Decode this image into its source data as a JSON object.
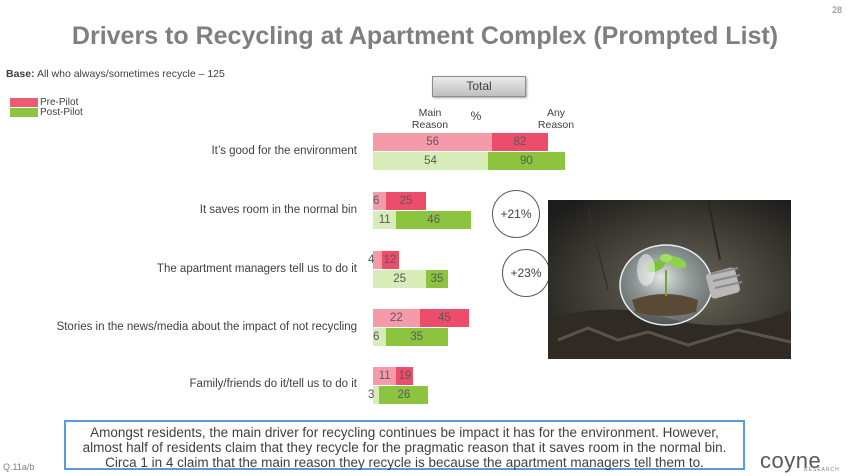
{
  "page_number": "28",
  "title": "Drivers to Recycling at Apartment Complex (Prompted List)",
  "base": {
    "label": "Base:",
    "text": " All who always/sometimes recycle – 125"
  },
  "toggle": {
    "label": "Total"
  },
  "colors": {
    "pre_main": "#f49aa8",
    "pre_any": "#ec4d6a",
    "post_main": "#d7ecb7",
    "post_any": "#8cc43f",
    "legend_pre": "#ee5a74",
    "legend_post": "#8cc43f"
  },
  "chart_data": {
    "type": "bar",
    "orientation": "horizontal",
    "stacked": true,
    "column_headers": {
      "main": "Main\nReason",
      "percent": "%",
      "any": "Any\nReason"
    },
    "legend": [
      "Pre-Pilot",
      "Post-Pilot"
    ],
    "categories": [
      "It’s good for the environment",
      "It saves room in the normal bin",
      "The apartment managers tell us to do it",
      "Stories in the news/media about the impact of not recycling",
      "Family/friends do it/tell us to do it"
    ],
    "series": [
      {
        "name": "Pre-Pilot",
        "main_reason": [
          56,
          6,
          4,
          22,
          11
        ],
        "any_reason": [
          82,
          25,
          12,
          45,
          19
        ]
      },
      {
        "name": "Post-Pilot",
        "main_reason": [
          54,
          11,
          25,
          6,
          3
        ],
        "any_reason": [
          90,
          46,
          35,
          35,
          26
        ]
      }
    ],
    "annotations": [
      {
        "category": "It saves room in the normal bin",
        "text": "+21%"
      },
      {
        "category": "The apartment managers tell us to do it",
        "text": "+23%"
      }
    ]
  },
  "summary": "Amongst residents, the main driver for recycling continues be impact it has for the environment. However, almost half of residents claim that they recycle for the pragmatic reason that it saves room in the normal bin. Circa 1 in 4 claim that the main reason they recycle is because the apartment managers tell them to.",
  "question_code": "Q.11a/b",
  "logo": {
    "text": "coyne",
    "subtext": "RESEARCH"
  }
}
